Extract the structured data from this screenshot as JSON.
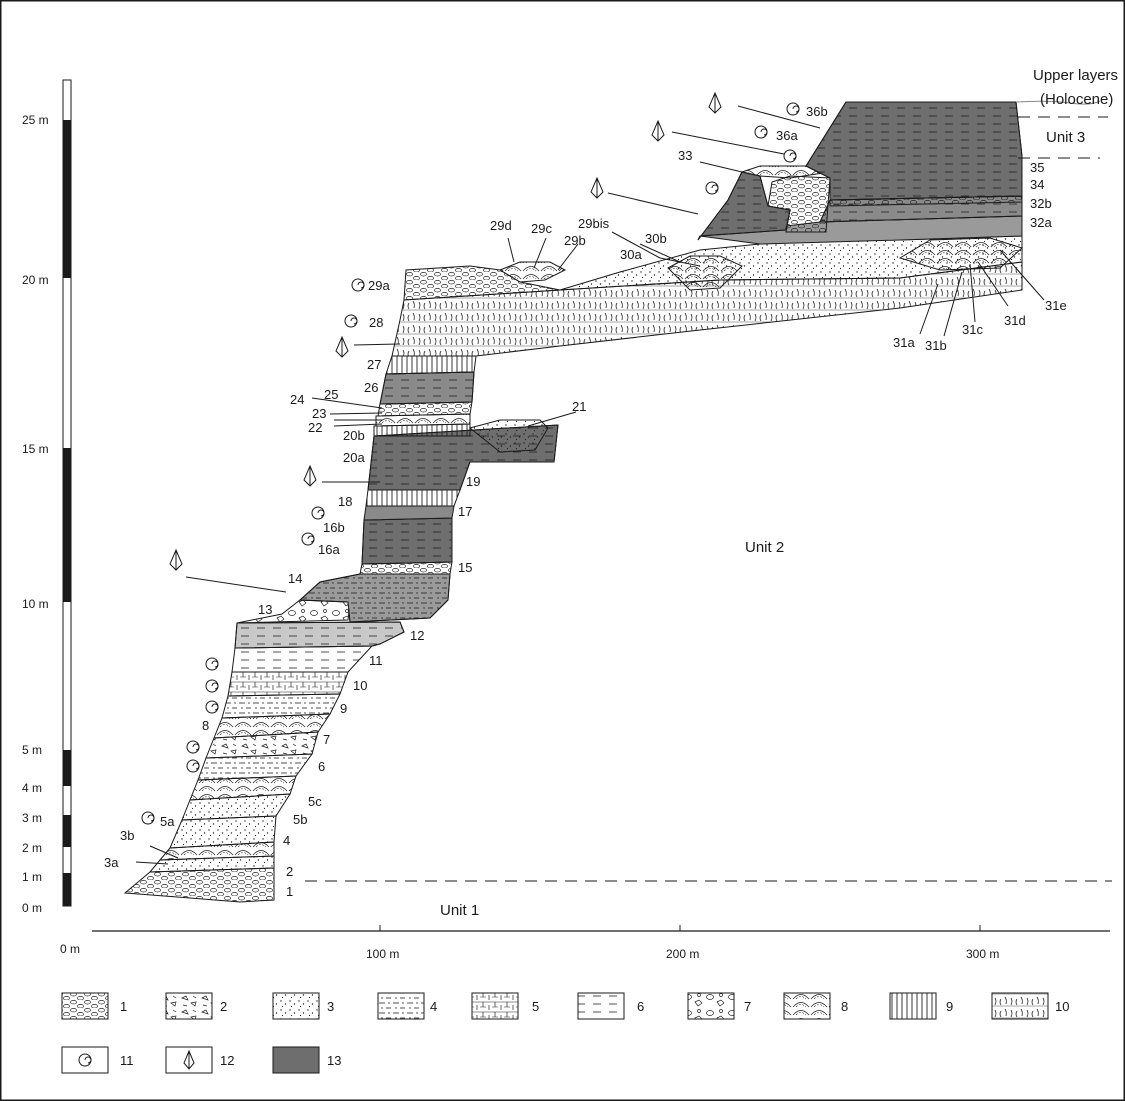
{
  "vertical_scale": {
    "labels": [
      "0 m",
      "1 m",
      "2 m",
      "3 m",
      "4 m",
      "5 m",
      "10 m",
      "15 m",
      "20 m",
      "25 m"
    ]
  },
  "horizontal_scale": {
    "labels": [
      "0 m",
      "100 m",
      "200 m",
      "300 m"
    ]
  },
  "headers": {
    "upper_layers_line1": "Upper layers",
    "upper_layers_line2": "(Holocene)",
    "unit3": "Unit 3",
    "unit2": "Unit 2",
    "unit1": "Unit 1"
  },
  "layers": {
    "l1": "1",
    "l2": "2",
    "l3a": "3a",
    "l3b": "3b",
    "l4": "4",
    "l5a": "5a",
    "l5b": "5b",
    "l5c": "5c",
    "l6": "6",
    "l7": "7",
    "l8": "8",
    "l9": "9",
    "l10": "10",
    "l11": "11",
    "l12": "12",
    "l13": "13",
    "l14": "14",
    "l15": "15",
    "l16a": "16a",
    "l16b": "16b",
    "l17": "17",
    "l18": "18",
    "l19": "19",
    "l20a": "20a",
    "l20b": "20b",
    "l21": "21",
    "l22": "22",
    "l23": "23",
    "l24": "24",
    "l25": "25",
    "l26": "26",
    "l27": "27",
    "l28": "28",
    "l29a": "29a",
    "l29b": "29b",
    "l29c": "29c",
    "l29d": "29d",
    "l29bis": "29bis",
    "l30a": "30a",
    "l30b": "30b",
    "l31a": "31a",
    "l31b": "31b",
    "l31c": "31c",
    "l31d": "31d",
    "l31e": "31e",
    "l32a": "32a",
    "l32b": "32b",
    "l33": "33",
    "l34": "34",
    "l35": "35",
    "l36a": "36a",
    "l36b": "36b"
  },
  "legend": [
    "1",
    "2",
    "3",
    "4",
    "5",
    "6",
    "7",
    "8",
    "9",
    "10",
    "11",
    "12",
    "13"
  ],
  "colors": {
    "dark_shade": "#6e6e6e",
    "mid_shade": "#9a9a9a",
    "light_shade": "#c8c8c8",
    "line": "#1a1a1a"
  },
  "icons": {
    "snail": "snail-shell-icon",
    "artifact": "lithic-artifact-icon"
  }
}
